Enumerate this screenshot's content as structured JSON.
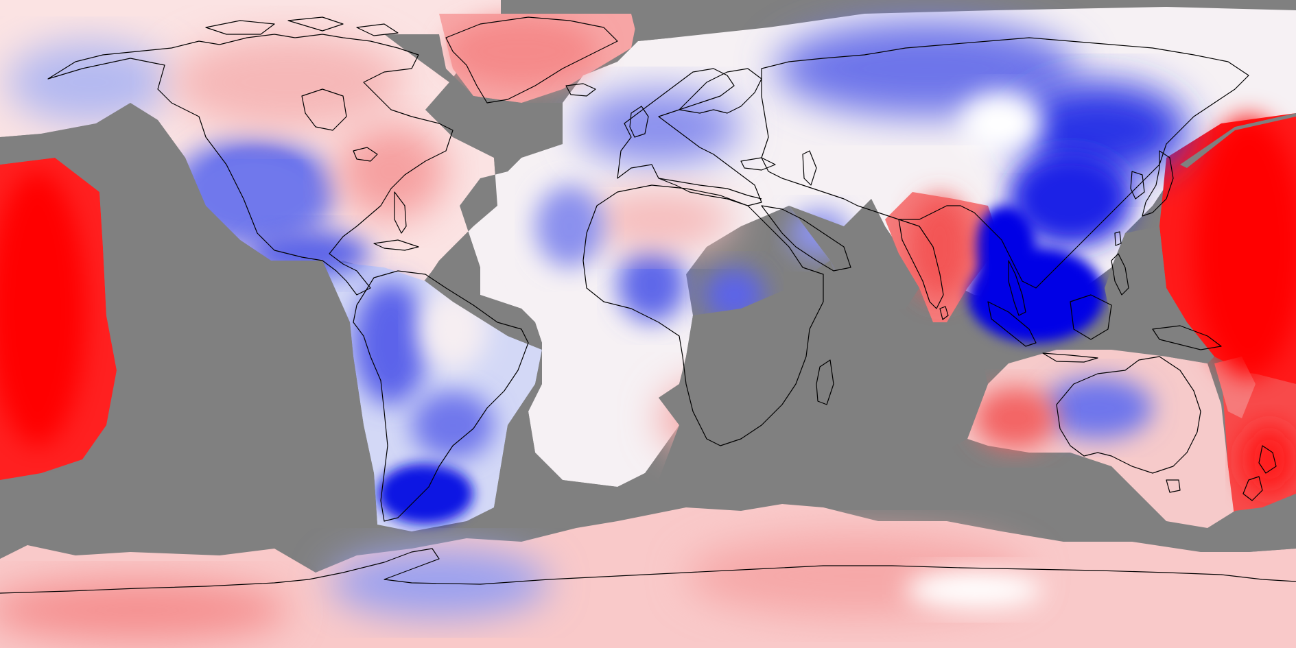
{
  "map": {
    "projection": "equirectangular",
    "background_color": "#808080",
    "missing_data_color": "#808080",
    "coastline_color": "#000000",
    "diverging_palette": {
      "strong_positive": "#ff0000",
      "moderate_positive": "#f57f7f",
      "weak_positive": "#fbd8d8",
      "neutral": "#ffffff",
      "weak_negative": "#d9dcf8",
      "moderate_negative": "#7f86ec",
      "strong_negative": "#0000e6"
    }
  }
}
